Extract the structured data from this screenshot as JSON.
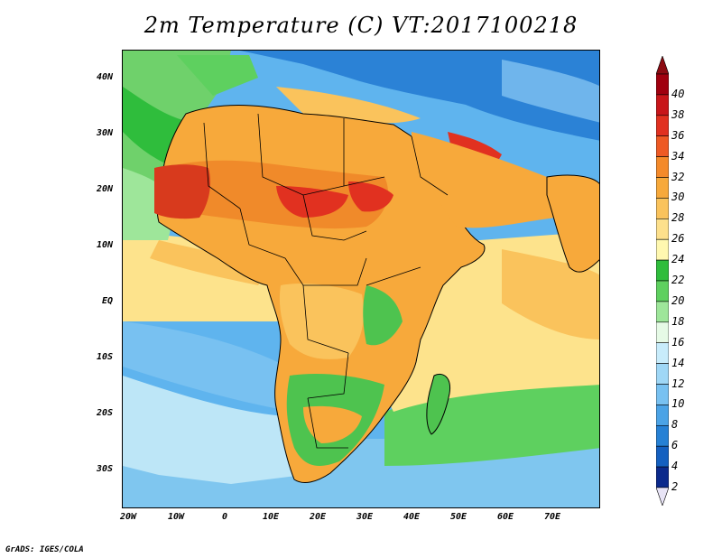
{
  "title": "2m Temperature (C) VT:2017100218",
  "credit": "GrADS: IGES/COLA",
  "lat_labels": [
    "40N",
    "30N",
    "20N",
    "10N",
    "EQ",
    "10S",
    "20S",
    "30S"
  ],
  "lon_labels": [
    "20W",
    "10W",
    "0",
    "10E",
    "20E",
    "30E",
    "40E",
    "50E",
    "60E",
    "70E"
  ],
  "colorbar": {
    "labels": [
      "40",
      "38",
      "36",
      "34",
      "32",
      "30",
      "28",
      "26",
      "24",
      "22",
      "20",
      "18",
      "16",
      "14",
      "12",
      "10",
      "8",
      "6",
      "4",
      "2"
    ],
    "colors": [
      "#a0000f",
      "#c8161a",
      "#e13120",
      "#ee5a24",
      "#f48a2a",
      "#f7a93b",
      "#fac35c",
      "#fde08c",
      "#fff8b0",
      "#2fbd3c",
      "#5ed05f",
      "#9ee69a",
      "#e6fae6",
      "#c8ecfb",
      "#9fd7f6",
      "#78c1f1",
      "#4ba3e6",
      "#2681d5",
      "#1460c0",
      "#0b2a8c"
    ],
    "top_arrow_color": "#8c0b12",
    "bottom_arrow_color": "#e8e4f6"
  },
  "map": {
    "ocean_colors": {
      "south_cool": "#bde6f7",
      "south_mid": "#7fc6ef",
      "south_cold": "#59aeea",
      "tropical": "#fde38c",
      "warm_sea": "#f9c36a",
      "mid_atlantic": "#6fd16b",
      "north_atlantic": "#2fbd3c"
    },
    "land_colors": {
      "sahara_hot": "#d83a1d",
      "sahara_warm": "#f08a2a",
      "savanna": "#f7a93b",
      "green": "#4ec34f",
      "europe_cool": "#2b82d6",
      "europe_cold": "#6fb5ec"
    }
  }
}
